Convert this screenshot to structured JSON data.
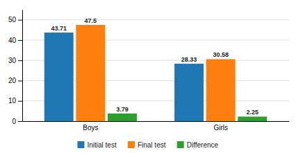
{
  "chart_data": {
    "type": "bar",
    "categories": [
      "Boys",
      "Girls"
    ],
    "series": [
      {
        "name": "Initial test",
        "values": [
          43.71,
          28.33
        ]
      },
      {
        "name": "Final test",
        "values": [
          47.5,
          30.58
        ]
      },
      {
        "name": "Difference",
        "values": [
          3.79,
          2.25
        ]
      }
    ],
    "ylim": [
      0,
      55
    ],
    "yticks": [
      0,
      10,
      20,
      30,
      40,
      50
    ],
    "grid": true,
    "legend": "bottom",
    "data_labels": true
  }
}
